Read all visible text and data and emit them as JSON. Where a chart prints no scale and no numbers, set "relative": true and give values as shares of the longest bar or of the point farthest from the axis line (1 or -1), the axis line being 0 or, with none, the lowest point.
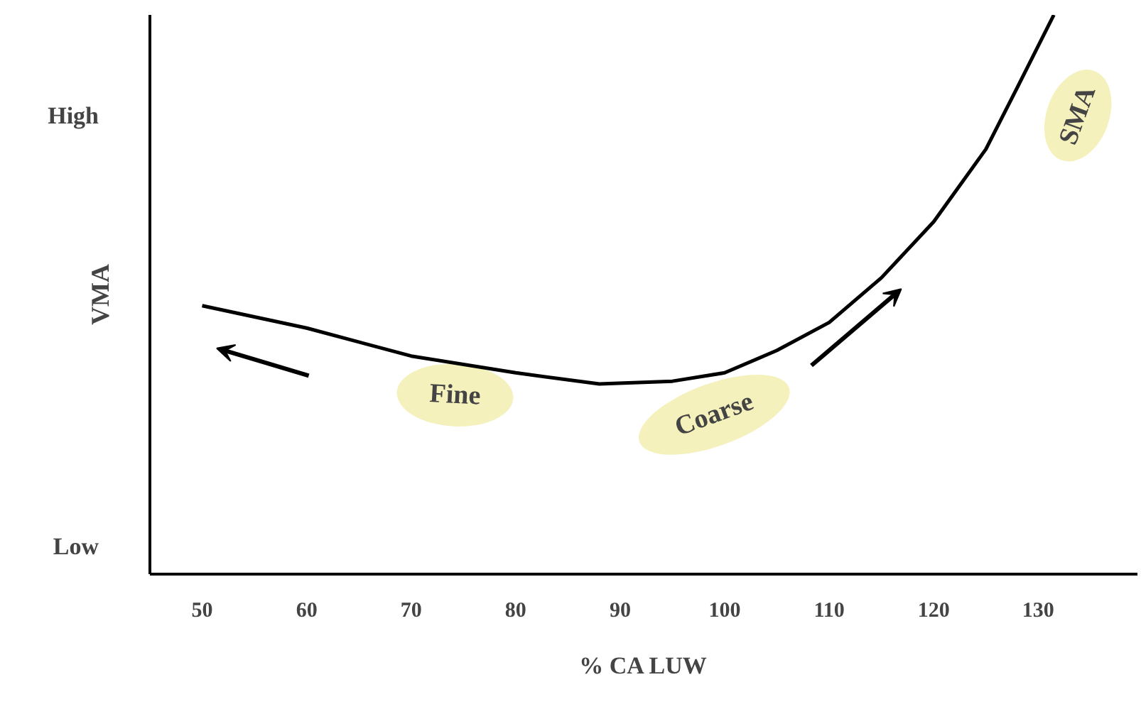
{
  "chart_data": {
    "type": "line",
    "relative": true,
    "xlabel": "% CA LUW",
    "ylabel": "VMA",
    "x": [
      50,
      60,
      70,
      80,
      88,
      95,
      100,
      105,
      110,
      115,
      120,
      125,
      128,
      131.5
    ],
    "series": [
      {
        "color": "#000000",
        "values": [
          0.48,
          0.44,
          0.39,
          0.36,
          0.34,
          0.345,
          0.36,
          0.4,
          0.45,
          0.53,
          0.63,
          0.76,
          0.87,
          1.0
        ]
      }
    ],
    "xlim": [
      45,
      139.5
    ],
    "xticks": [
      50,
      60,
      70,
      80,
      90,
      100,
      110,
      120,
      130
    ],
    "grid": false,
    "marker": "none",
    "line_style": "solid",
    "annotations": [
      "High",
      "Low",
      "Fine",
      "Coarse",
      "SMA"
    ]
  }
}
